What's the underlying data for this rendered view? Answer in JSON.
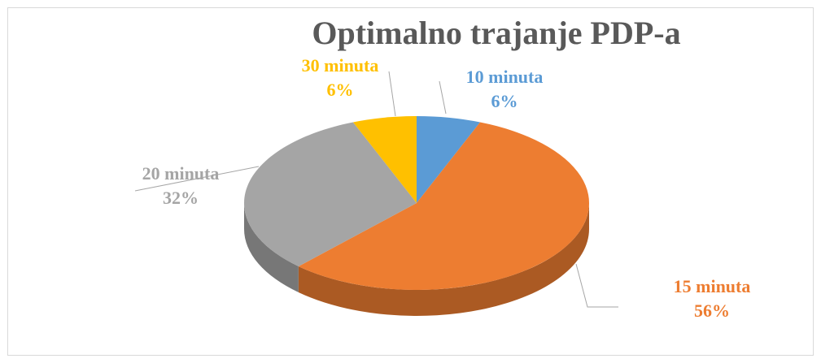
{
  "chart_data": {
    "type": "pie",
    "title": "Optimalno trajanje PDP-a",
    "categories": [
      "10 minuta",
      "15 minuta",
      "20 minuta",
      "30 minuta"
    ],
    "values": [
      6,
      56,
      32,
      6
    ],
    "value_labels": [
      "6%",
      "56%",
      "32%",
      "6%"
    ],
    "colors": [
      "#5b9bd5",
      "#ed7d31",
      "#a5a5a5",
      "#ffc000"
    ]
  }
}
